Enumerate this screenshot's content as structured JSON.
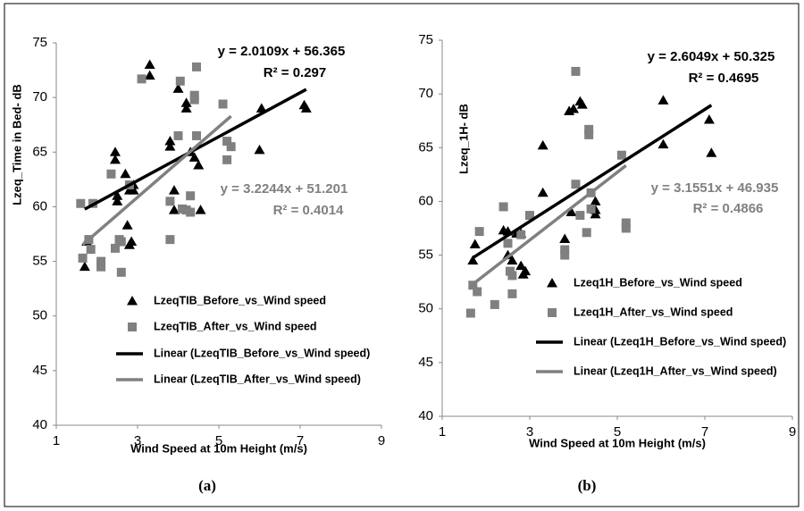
{
  "chart_data": [
    {
      "type": "scatter",
      "caption": "(a)",
      "x_label": "Wind Speed at 10m Height (m/s)",
      "y_label": "Lzeq_Time in Bed- dB",
      "xlim": [
        1,
        9
      ],
      "xticks": [
        1,
        3,
        5,
        7,
        9
      ],
      "ylim": [
        40,
        75
      ],
      "yticks": [
        40,
        45,
        50,
        55,
        60,
        65,
        70,
        75
      ],
      "series": [
        {
          "name": "LzeqTIB_Before_vs_Wind speed",
          "kind": "scatter",
          "marker": "triangle",
          "color": "#000000",
          "x": [
            1.7,
            1.75,
            2.45,
            2.45,
            2.5,
            2.5,
            2.7,
            2.75,
            2.8,
            2.8,
            2.85,
            2.9,
            2.9,
            3.3,
            3.3,
            3.8,
            3.8,
            3.9,
            3.9,
            4.0,
            4.2,
            4.2,
            4.3,
            4.4,
            4.5,
            4.55,
            6.0,
            6.05,
            7.1,
            7.15
          ],
          "values": [
            54.5,
            56.8,
            65,
            64.3,
            60.5,
            61,
            63,
            58.3,
            61.5,
            56.5,
            56.8,
            62,
            61.5,
            73,
            72,
            66,
            65.5,
            59.7,
            61.5,
            70.8,
            69.5,
            69,
            65,
            64.5,
            63.8,
            59.7,
            65.2,
            69,
            69.3,
            69
          ]
        },
        {
          "name": "LzeqTIB_After_vs_Wind speed",
          "kind": "scatter",
          "marker": "square",
          "color": "#808080",
          "x": [
            1.6,
            1.65,
            1.8,
            1.85,
            1.9,
            2.1,
            2.1,
            2.35,
            2.45,
            2.55,
            2.6,
            2.6,
            2.8,
            3.1,
            3.8,
            3.8,
            4.0,
            4.05,
            4.1,
            4.2,
            4.3,
            4.3,
            4.4,
            4.4,
            4.45,
            4.45,
            5.1,
            5.2,
            5.2,
            5.3
          ],
          "values": [
            60.3,
            55.3,
            57,
            56.1,
            60.3,
            54.5,
            55,
            63,
            56.2,
            57,
            54,
            56.8,
            62,
            71.7,
            60.5,
            57,
            66.5,
            71.5,
            59.8,
            59.7,
            61,
            59.5,
            70.2,
            69.8,
            66.5,
            72.8,
            69.4,
            66,
            64.3,
            65.5
          ]
        },
        {
          "name": "Linear (LzeqTIB_Before_vs_Wind speed)",
          "kind": "line",
          "color": "#000000",
          "x": [
            1.7,
            7.15
          ],
          "values": [
            59.78,
            70.74
          ]
        },
        {
          "name": "Linear (LzeqTIB_After_vs_Wind speed)",
          "kind": "line",
          "color": "#808080",
          "x": [
            1.65,
            5.3
          ],
          "values": [
            56.52,
            68.29
          ]
        }
      ],
      "annotations": [
        {
          "text": "y = 2.0109x + 56.365",
          "color": "#000000"
        },
        {
          "text": "R² = 0.297",
          "color": "#000000"
        },
        {
          "text": "y = 3.2244x + 51.201",
          "color": "#808080"
        },
        {
          "text": "R² = 0.4014",
          "color": "#808080"
        }
      ]
    },
    {
      "type": "scatter",
      "caption": "(b)",
      "x_label": "Wind Speed at 10m Height (m/s)",
      "y_label": "Lzeq_1H- dB",
      "xlim": [
        1,
        9
      ],
      "xticks": [
        1,
        3,
        5,
        7,
        9
      ],
      "ylim": [
        40,
        75
      ],
      "yticks": [
        40,
        45,
        50,
        55,
        60,
        65,
        70,
        75
      ],
      "series": [
        {
          "name": "Lzeq1H_Before_vs_Wind speed",
          "kind": "scatter",
          "marker": "triangle",
          "color": "#000000",
          "x": [
            1.7,
            1.75,
            2.4,
            2.5,
            2.5,
            2.6,
            2.7,
            2.8,
            2.8,
            2.85,
            2.9,
            3.3,
            3.3,
            3.8,
            3.9,
            4.0,
            3.95,
            4.15,
            4.2,
            4.5,
            4.5,
            4.5,
            6.05,
            6.05,
            7.1,
            7.15
          ],
          "values": [
            54.5,
            56,
            57.3,
            57.2,
            55,
            54.5,
            57,
            57,
            54,
            53.2,
            53.5,
            65.2,
            60.8,
            56.5,
            68.4,
            68.6,
            59,
            69.3,
            69,
            59.2,
            58.8,
            60,
            69.4,
            65.3,
            67.6,
            64.5
          ]
        },
        {
          "name": "Lzeq1H_After_vs_Wind speed",
          "kind": "scatter",
          "marker": "square",
          "color": "#808080",
          "x": [
            1.65,
            1.7,
            1.8,
            1.85,
            2.2,
            2.4,
            2.5,
            2.55,
            2.6,
            2.6,
            2.8,
            3.0,
            3.8,
            3.8,
            4.05,
            4.05,
            4.15,
            4.3,
            4.35,
            4.35,
            4.4,
            4.4,
            5.1,
            5.2,
            5.2
          ],
          "values": [
            49.6,
            52.2,
            51.6,
            57.2,
            50.4,
            59.5,
            56.1,
            53.5,
            51.4,
            53.1,
            56.9,
            58.7,
            55.5,
            55,
            72.1,
            61.6,
            58.7,
            57.1,
            66.7,
            66.2,
            59.3,
            60.8,
            64.3,
            58,
            57.5
          ]
        },
        {
          "name": "Linear (Lzeq1H_Before_vs_Wind speed)",
          "kind": "line",
          "color": "#000000",
          "x": [
            1.7,
            7.15
          ],
          "values": [
            54.75,
            68.95
          ]
        },
        {
          "name": "Linear (Lzeq1H_After_vs_Wind speed)",
          "kind": "line",
          "color": "#808080",
          "x": [
            1.65,
            5.2
          ],
          "values": [
            52.14,
            63.34
          ]
        }
      ],
      "annotations": [
        {
          "text": "y = 2.6049x + 50.325",
          "color": "#000000"
        },
        {
          "text": "R² = 0.4695",
          "color": "#000000"
        },
        {
          "text": "y = 3.1551x + 46.935",
          "color": "#808080"
        },
        {
          "text": "R² = 0.4866",
          "color": "#808080"
        }
      ]
    }
  ]
}
